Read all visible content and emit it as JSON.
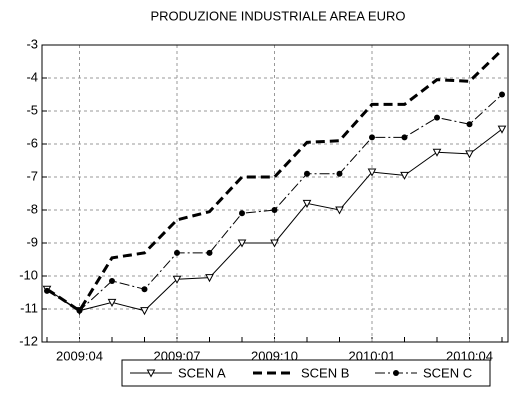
{
  "chart_data": {
    "type": "line",
    "title": "PRODUZIONE INDUSTRIALE AREA EURO",
    "categories": [
      null,
      "2009:04",
      null,
      null,
      "2009:07",
      null,
      null,
      "2009:10",
      null,
      null,
      "2010:01",
      null,
      null,
      "2010:04",
      null
    ],
    "ylim": [
      -12,
      -3
    ],
    "yticks": [
      -12,
      -11,
      -10,
      -9,
      -8,
      -7,
      -6,
      -5,
      -4,
      -3
    ],
    "grid": true,
    "series": [
      {
        "name": "SCEN A",
        "color": "#000000",
        "dash": "solid",
        "marker": "triangle-open",
        "values": [
          -10.4,
          -11.05,
          -10.8,
          -11.05,
          -10.1,
          -10.05,
          -9.0,
          -9.0,
          -7.8,
          -8.0,
          -6.85,
          -6.95,
          -6.25,
          -6.3,
          -5.55
        ]
      },
      {
        "name": "SCEN B",
        "color": "#000000",
        "dash": "long",
        "marker": "none",
        "values": [
          -10.4,
          -11.05,
          -9.45,
          -9.3,
          -8.3,
          -8.05,
          -7.0,
          -7.0,
          -5.95,
          -5.9,
          -4.8,
          -4.8,
          -4.05,
          -4.1,
          -3.15
        ]
      },
      {
        "name": "SCEN C",
        "color": "#000000",
        "dash": "dashdot",
        "marker": "circle",
        "values": [
          -10.45,
          -11.05,
          -10.15,
          -10.4,
          -9.3,
          -9.3,
          -8.1,
          -8.0,
          -6.9,
          -6.9,
          -5.8,
          -5.8,
          -5.2,
          -5.4,
          -4.5
        ]
      }
    ]
  }
}
